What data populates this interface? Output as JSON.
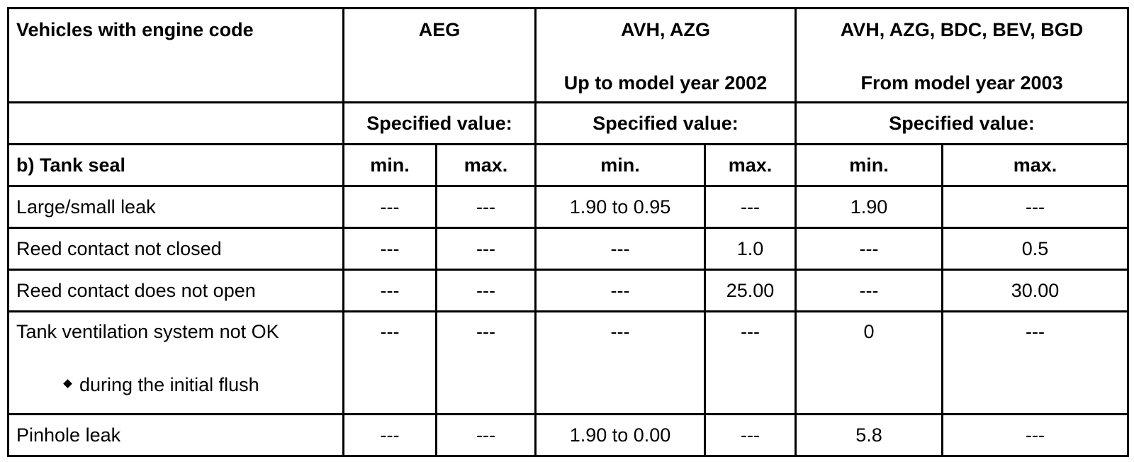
{
  "header": {
    "first": "Vehicles with engine code",
    "groups": [
      {
        "title": "AEG"
      },
      {
        "title": "AVH, AZG",
        "subtitle": "Up to model year 2002"
      },
      {
        "title": "AVH, AZG, BDC, BEV, BGD",
        "subtitle": "From model year 2003"
      }
    ]
  },
  "spec_labels": [
    "Specified value:",
    "Specified value:",
    "Specified value:"
  ],
  "columns": {
    "label": "b) Tank seal",
    "sub": [
      "min.",
      "max.",
      "min.",
      "max.",
      "min.",
      "max."
    ]
  },
  "rows": [
    {
      "label": "Large/small leak",
      "cells": [
        "---",
        "---",
        "1.90 to 0.95",
        "---",
        "1.90",
        "---"
      ]
    },
    {
      "label": "Reed contact not closed",
      "cells": [
        "---",
        "---",
        "---",
        "1.0",
        "---",
        "0.5"
      ]
    },
    {
      "label": "Reed contact does not open",
      "cells": [
        "---",
        "---",
        "---",
        "25.00",
        "---",
        "30.00"
      ]
    },
    {
      "label": "Tank ventilation system not OK",
      "note": "during the initial flush",
      "cells": [
        "---",
        "---",
        "---",
        "---",
        "0",
        "---"
      ]
    },
    {
      "label": "Pinhole leak",
      "cells": [
        "---",
        "---",
        "1.90 to 0.00",
        "---",
        "5.8",
        "---"
      ]
    }
  ]
}
